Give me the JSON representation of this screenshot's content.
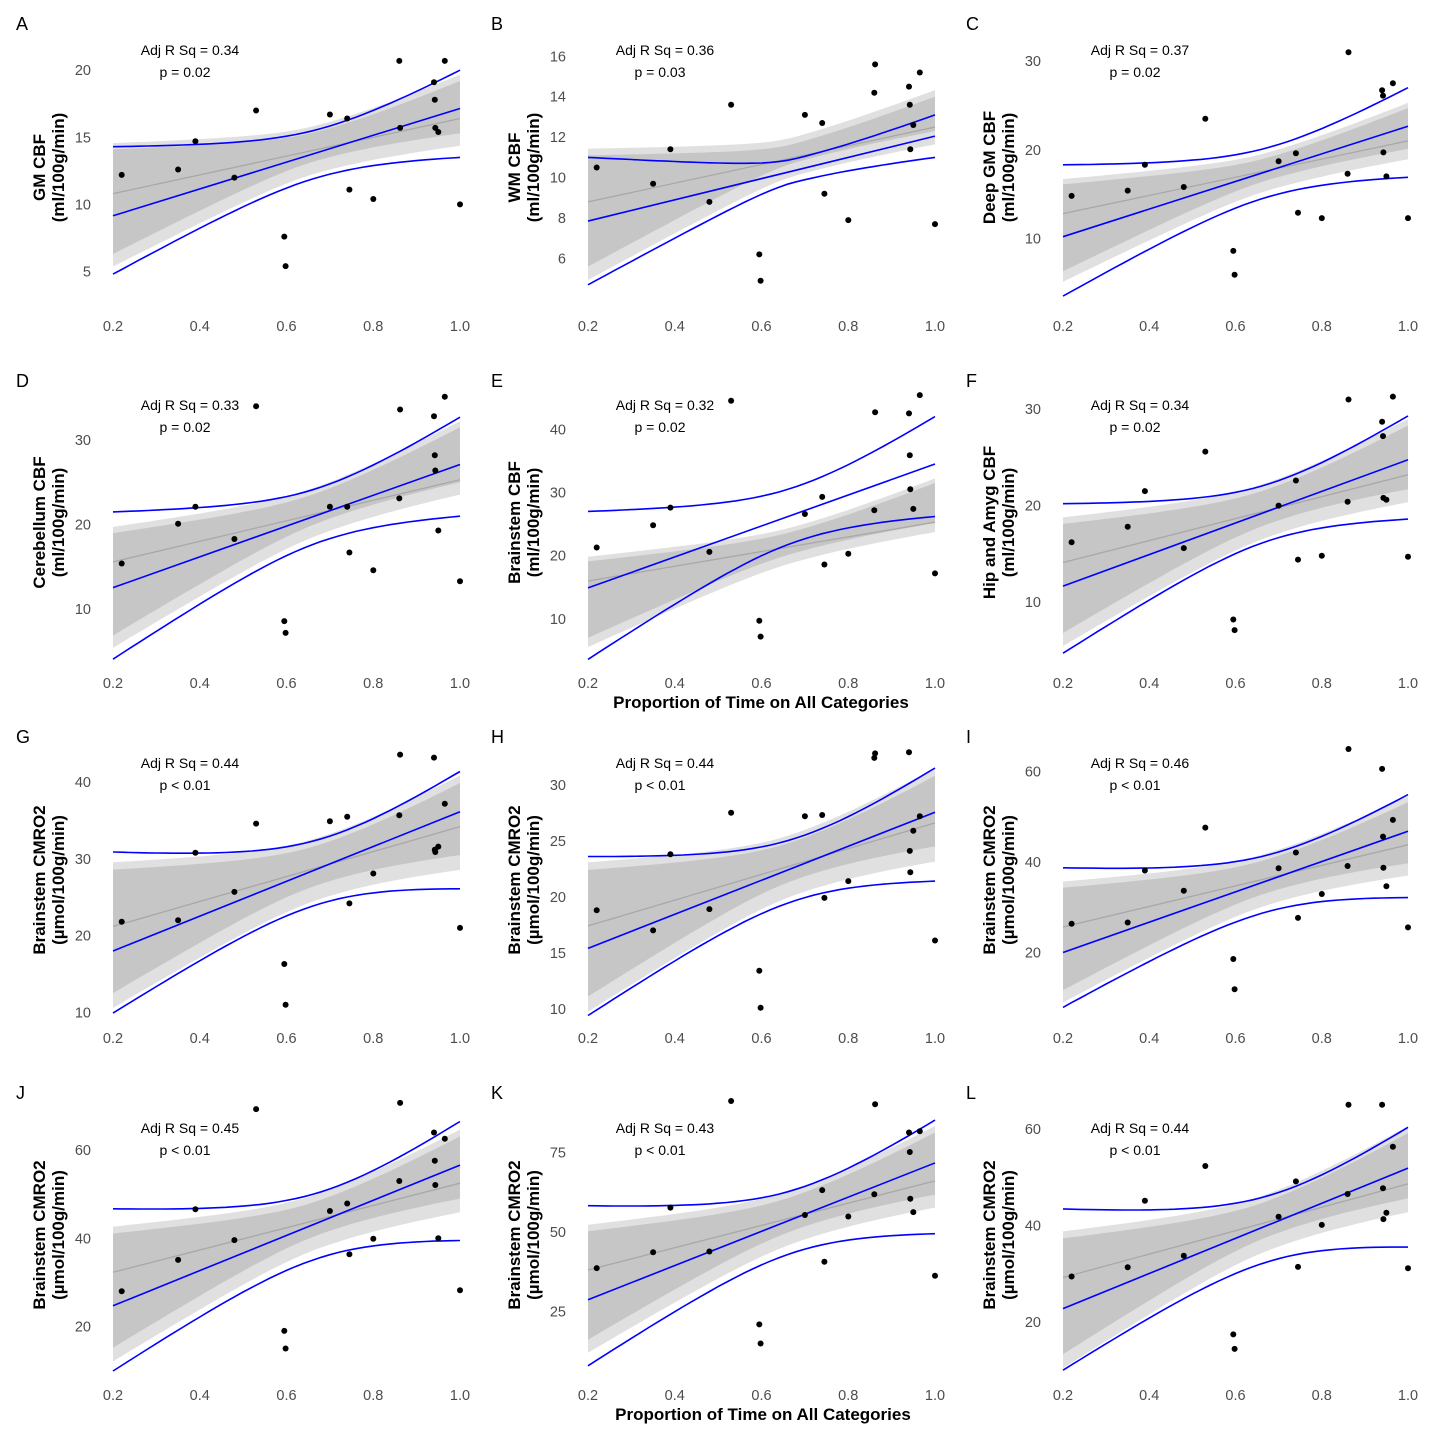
{
  "x_axis_title_1": "Proportion of Time on All Categories",
  "x_axis_title_2": "Proportion of Time on All Categories",
  "chart_data": [
    {
      "letter": "A",
      "type": "scatter",
      "ylabel": [
        "GM CBF",
        "(ml/100g/min)"
      ],
      "xlim": [
        0.2,
        1.0
      ],
      "ylim": [
        2.5,
        23
      ],
      "xticks": [
        "0.2",
        "0.4",
        "0.6",
        "0.8",
        "1.0"
      ],
      "yticks": [
        5,
        10,
        15,
        20
      ],
      "r2_label": "Adj R Sq =  0.34",
      "p_label": "p =  0.02",
      "x": [
        0.22,
        0.35,
        0.39,
        0.48,
        0.53,
        0.595,
        0.598,
        0.7,
        0.74,
        0.745,
        0.8,
        0.86,
        0.862,
        0.94,
        0.942,
        0.943,
        0.95,
        0.965,
        1.0
      ],
      "y": [
        12.2,
        12.6,
        14.7,
        12.0,
        17.0,
        7.6,
        5.4,
        16.7,
        16.4,
        11.1,
        10.4,
        20.7,
        15.7,
        19.1,
        17.8,
        15.7,
        15.4,
        20.7,
        10.0
      ],
      "fit": [
        10.8,
        16.4
      ],
      "ci": [
        [
          6.3,
          15.3
        ],
        [
          14.1,
          19.2
        ]
      ],
      "pred": [
        [
          4.8,
          13.5
        ],
        [
          14.3,
          20.0
        ]
      ]
    },
    {
      "letter": "B",
      "type": "scatter",
      "ylabel": [
        "WM CBF",
        "(ml/100g/min)"
      ],
      "xlim": [
        0.2,
        1.0
      ],
      "ylim": [
        3.7,
        17.3
      ],
      "xticks": [
        "0.2",
        "0.4",
        "0.6",
        "0.8",
        "1.0"
      ],
      "yticks": [
        6,
        8,
        10,
        12,
        14,
        16
      ],
      "r2_label": "Adj R Sq =  0.36",
      "p_label": "p =  0.03",
      "x": [
        0.22,
        0.35,
        0.39,
        0.48,
        0.53,
        0.595,
        0.598,
        0.7,
        0.74,
        0.745,
        0.8,
        0.86,
        0.862,
        0.94,
        0.942,
        0.943,
        0.95,
        0.965,
        1.0
      ],
      "y": [
        10.5,
        9.7,
        11.4,
        8.8,
        13.6,
        6.2,
        4.9,
        13.1,
        12.7,
        9.2,
        7.9,
        14.2,
        15.6,
        14.5,
        13.6,
        11.4,
        12.6,
        15.2,
        7.7
      ],
      "fit": [
        8.8,
        12.5
      ],
      "ci": [
        [
          5.6,
          12.3
        ],
        [
          11.1,
          14.0
        ]
      ],
      "pred": [
        [
          4.7,
          11.0
        ],
        [
          11.0,
          13.1
        ]
      ]
    },
    {
      "letter": "C",
      "type": "scatter",
      "ylabel": [
        "Deep GM CBF",
        "(ml/100g/min)"
      ],
      "xlim": [
        0.2,
        1.0
      ],
      "ylim": [
        2.5,
        33.5
      ],
      "xticks": [
        "0.2",
        "0.4",
        "0.6",
        "0.8",
        "1.0"
      ],
      "yticks": [
        10,
        20,
        30
      ],
      "r2_label": "Adj R Sq =  0.37",
      "p_label": "p =  0.02",
      "x": [
        0.22,
        0.35,
        0.39,
        0.48,
        0.53,
        0.595,
        0.598,
        0.7,
        0.74,
        0.745,
        0.8,
        0.86,
        0.862,
        0.94,
        0.942,
        0.943,
        0.95,
        0.965,
        1.0
      ],
      "y": [
        14.8,
        15.4,
        18.3,
        15.8,
        23.5,
        8.6,
        5.9,
        18.7,
        19.6,
        12.9,
        12.3,
        17.3,
        31.0,
        26.7,
        26.1,
        19.7,
        17.0,
        27.5,
        12.3
      ],
      "fit": [
        12.8,
        21.0
      ],
      "ci": [
        [
          6.3,
          20.1
        ],
        [
          16.1,
          24.7
        ]
      ],
      "pred": [
        [
          3.5,
          16.9
        ],
        [
          18.3,
          27.0
        ]
      ]
    },
    {
      "letter": "D",
      "type": "scatter",
      "ylabel": [
        "Cerebellum CBF",
        "(ml/100g/min)"
      ],
      "xlim": [
        0.2,
        1.0
      ],
      "ylim": [
        4.0,
        36.5
      ],
      "xticks": [
        "0.2",
        "0.4",
        "0.6",
        "0.8",
        "1.0"
      ],
      "yticks": [
        10,
        20,
        30
      ],
      "r2_label": "Adj R Sq =  0.33",
      "p_label": "p =  0.02",
      "x": [
        0.22,
        0.35,
        0.39,
        0.48,
        0.53,
        0.595,
        0.598,
        0.7,
        0.74,
        0.745,
        0.8,
        0.86,
        0.862,
        0.94,
        0.942,
        0.943,
        0.95,
        0.965,
        1.0
      ],
      "y": [
        15.4,
        20.1,
        22.1,
        18.3,
        34.0,
        8.6,
        7.2,
        22.1,
        22.1,
        16.7,
        14.6,
        23.1,
        33.6,
        32.8,
        28.2,
        26.4,
        19.3,
        35.1,
        13.3
      ],
      "fit": [
        15.6,
        25.3
      ],
      "ci": [
        [
          6.9,
          25.0
        ],
        [
          19.0,
          31.5
        ]
      ],
      "pred": [
        [
          4.1,
          21.0
        ],
        [
          21.5,
          32.7
        ]
      ]
    },
    {
      "letter": "E",
      "type": "scatter",
      "ylabel": [
        "Brainstem CBF",
        "(ml/100g/min)"
      ],
      "xlim": [
        0.2,
        1.0
      ],
      "ylim": [
        3.5,
        47.0
      ],
      "xticks": [
        "0.2",
        "0.4",
        "0.6",
        "0.8",
        "1.0"
      ],
      "yticks": [
        10,
        20,
        30,
        40
      ],
      "r2_label": "Adj R Sq =  0.32",
      "p_label": "p =  0.02",
      "x": [
        0.22,
        0.35,
        0.39,
        0.48,
        0.53,
        0.595,
        0.598,
        0.7,
        0.74,
        0.745,
        0.8,
        0.86,
        0.862,
        0.94,
        0.942,
        0.943,
        0.95,
        0.965,
        1.0
      ],
      "y": [
        21.3,
        24.8,
        27.6,
        20.6,
        44.5,
        9.7,
        7.2,
        26.6,
        29.3,
        18.6,
        20.3,
        27.2,
        42.7,
        42.5,
        35.9,
        30.5,
        27.4,
        45.4,
        17.2
      ],
      "fit": [
        16.0,
        25.3
      ],
      "ci": [
        [
          7.0,
          25.2
        ],
        [
          19.1,
          31.5
        ]
      ],
      "pred": [
        [
          3.6,
          26.2
        ],
        [
          27.0,
          42.0
        ]
      ]
    },
    {
      "letter": "F",
      "type": "scatter",
      "ylabel": [
        "Hip and Amyg CBF",
        "(ml/100g/min)"
      ],
      "xlim": [
        0.2,
        1.0
      ],
      "ylim": [
        4.0,
        32.5
      ],
      "xticks": [
        "0.2",
        "0.4",
        "0.6",
        "0.8",
        "1.0"
      ],
      "yticks": [
        10,
        20,
        30
      ],
      "r2_label": "Adj R Sq =  0.34",
      "p_label": "p =  0.02",
      "x": [
        0.22,
        0.35,
        0.39,
        0.48,
        0.53,
        0.595,
        0.598,
        0.7,
        0.74,
        0.745,
        0.8,
        0.86,
        0.862,
        0.94,
        0.942,
        0.943,
        0.95,
        0.965,
        1.0
      ],
      "y": [
        16.2,
        17.8,
        21.5,
        15.6,
        25.6,
        8.2,
        7.1,
        20.0,
        22.6,
        14.4,
        14.8,
        20.4,
        31.0,
        28.7,
        27.2,
        20.8,
        20.6,
        31.3,
        14.7
      ],
      "fit": [
        14.1,
        23.2
      ],
      "ci": [
        [
          6.8,
          21.7
        ],
        [
          18.1,
          28.3
        ]
      ],
      "pred": [
        [
          4.7,
          18.6
        ],
        [
          20.2,
          29.3
        ]
      ]
    },
    {
      "letter": "G",
      "type": "scatter",
      "ylabel": [
        "Brainstem CMRO2",
        "(µmol/100g/min)"
      ],
      "xlim": [
        0.2,
        1.0
      ],
      "ylim": [
        9.0,
        45.5
      ],
      "xticks": [
        "0.2",
        "0.4",
        "0.6",
        "0.8",
        "1.0"
      ],
      "yticks": [
        10,
        20,
        30,
        40
      ],
      "r2_label": "Adj R Sq =  0.44",
      "p_label": "p < 0.01",
      "x": [
        0.22,
        0.35,
        0.39,
        0.48,
        0.53,
        0.595,
        0.598,
        0.7,
        0.74,
        0.745,
        0.8,
        0.86,
        0.862,
        0.94,
        0.942,
        0.943,
        0.95,
        0.965,
        1.0
      ],
      "y": [
        21.8,
        22.0,
        30.8,
        25.7,
        34.6,
        16.3,
        11.0,
        34.9,
        35.5,
        24.2,
        28.1,
        35.7,
        43.6,
        43.2,
        31.2,
        30.9,
        31.6,
        37.2,
        21.0
      ],
      "fit": [
        21.2,
        34.2
      ],
      "ci": [
        [
          12.5,
          30.5
        ],
        [
          28.6,
          39.9
        ]
      ],
      "pred": [
        [
          9.9,
          26.1
        ],
        [
          30.9,
          41.4
        ]
      ]
    },
    {
      "letter": "H",
      "type": "scatter",
      "ylabel": [
        "Brainstem CMRO2",
        "(µmol/100g/min)"
      ],
      "xlim": [
        0.2,
        1.0
      ],
      "ylim": [
        9.0,
        34.0
      ],
      "xticks": [
        "0.2",
        "0.4",
        "0.6",
        "0.8",
        "1.0"
      ],
      "yticks": [
        10,
        15,
        20,
        25,
        30
      ],
      "r2_label": "Adj R Sq =  0.44",
      "p_label": "p < 0.01",
      "x": [
        0.22,
        0.35,
        0.39,
        0.48,
        0.53,
        0.595,
        0.598,
        0.7,
        0.74,
        0.745,
        0.8,
        0.86,
        0.862,
        0.94,
        0.942,
        0.943,
        0.95,
        0.965,
        1.0
      ],
      "y": [
        18.8,
        17.0,
        23.8,
        18.9,
        27.5,
        13.4,
        10.1,
        27.2,
        27.3,
        19.9,
        21.4,
        32.4,
        32.8,
        32.9,
        24.1,
        22.2,
        25.9,
        27.2,
        16.1
      ],
      "fit": [
        17.4,
        26.6
      ],
      "ci": [
        [
          11.1,
          24.5
        ],
        [
          22.4,
          30.8
        ]
      ],
      "pred": [
        [
          9.4,
          21.4
        ],
        [
          23.6,
          31.5
        ]
      ]
    },
    {
      "letter": "I",
      "type": "scatter",
      "ylabel": [
        "Brainstem CMRO2",
        "(µmol/100g/min)"
      ],
      "xlim": [
        0.2,
        1.0
      ],
      "ylim": [
        5.0,
        67.0
      ],
      "xticks": [
        "0.2",
        "0.4",
        "0.6",
        "0.8",
        "1.0"
      ],
      "yticks": [
        20,
        40,
        60
      ],
      "r2_label": "Adj R Sq =  0.46",
      "p_label": "p < 0.01",
      "x": [
        0.22,
        0.35,
        0.39,
        0.48,
        0.53,
        0.595,
        0.598,
        0.7,
        0.74,
        0.745,
        0.8,
        0.86,
        0.862,
        0.94,
        0.942,
        0.943,
        0.95,
        0.965,
        1.0
      ],
      "y": [
        26.3,
        26.6,
        38.1,
        33.6,
        47.6,
        18.5,
        11.8,
        38.6,
        42.1,
        27.6,
        32.9,
        39.1,
        65.0,
        60.6,
        45.6,
        38.7,
        34.6,
        49.3,
        25.5
      ],
      "fit": [
        25.6,
        43.8
      ],
      "ci": [
        [
          11.6,
          39.7
        ],
        [
          34.3,
          53.2
        ]
      ],
      "pred": [
        [
          7.8,
          32.1
        ],
        [
          38.7,
          54.9
        ]
      ]
    },
    {
      "letter": "J",
      "type": "scatter",
      "ylabel": [
        "Brainstem CMRO2",
        "(µmol/100g/min)"
      ],
      "xlim": [
        0.2,
        1.0
      ],
      "ylim": [
        9.0,
        72.5
      ],
      "xticks": [
        "0.2",
        "0.4",
        "0.6",
        "0.8",
        "1.0"
      ],
      "yticks": [
        20,
        40,
        60
      ],
      "r2_label": "Adj R Sq =  0.45",
      "p_label": "p < 0.01",
      "x": [
        0.22,
        0.35,
        0.39,
        0.48,
        0.53,
        0.595,
        0.598,
        0.7,
        0.74,
        0.745,
        0.8,
        0.86,
        0.862,
        0.94,
        0.942,
        0.943,
        0.95,
        0.965,
        1.0
      ],
      "y": [
        28.0,
        35.1,
        46.6,
        39.6,
        69.3,
        19.0,
        15.0,
        46.2,
        47.9,
        36.4,
        39.9,
        53.0,
        70.7,
        64.0,
        57.6,
        52.1,
        40.0,
        62.6,
        28.2
      ],
      "fit": [
        32.3,
        52.5
      ],
      "ci": [
        [
          15.2,
          49.0
        ],
        [
          41.1,
          63.1
        ]
      ],
      "pred": [
        [
          9.9,
          39.5
        ],
        [
          46.7,
          66.5
        ]
      ]
    },
    {
      "letter": "K",
      "type": "scatter",
      "ylabel": [
        "Brainstem CMRO2",
        "(µmol/100g/min)"
      ],
      "xlim": [
        0.2,
        1.0
      ],
      "ylim": [
        5.0,
        93.0
      ],
      "xticks": [
        "0.2",
        "0.4",
        "0.6",
        "0.8",
        "1.0"
      ],
      "yticks": [
        25,
        50,
        75
      ],
      "r2_label": "Adj R Sq =  0.43",
      "p_label": "p < 0.01",
      "x": [
        0.22,
        0.35,
        0.39,
        0.48,
        0.53,
        0.595,
        0.598,
        0.7,
        0.74,
        0.745,
        0.8,
        0.86,
        0.862,
        0.94,
        0.942,
        0.943,
        0.95,
        0.965,
        1.0
      ],
      "y": [
        38.6,
        43.6,
        57.6,
        43.8,
        91.1,
        20.9,
        14.9,
        55.3,
        63.1,
        40.6,
        54.8,
        61.8,
        90.1,
        81.2,
        75.1,
        60.4,
        56.2,
        81.6,
        36.2
      ],
      "fit": [
        38.0,
        66.0
      ],
      "ci": [
        [
          16.1,
          61.7
        ],
        [
          50.2,
          81.2
        ]
      ],
      "pred": [
        [
          7.9,
          49.4
        ],
        [
          58.2,
          85.1
        ]
      ]
    },
    {
      "letter": "L",
      "type": "scatter",
      "ylabel": [
        "Brainstem CMRO2",
        "(µmol/100g/min)"
      ],
      "xlim": [
        0.2,
        1.0
      ],
      "ylim": [
        9.0,
        67.0
      ],
      "xticks": [
        "0.2",
        "0.4",
        "0.6",
        "0.8",
        "1.0"
      ],
      "yticks": [
        20,
        40,
        60
      ],
      "r2_label": "Adj R Sq =  0.44",
      "p_label": "p < 0.01",
      "x": [
        0.22,
        0.35,
        0.39,
        0.48,
        0.53,
        0.595,
        0.598,
        0.7,
        0.74,
        0.745,
        0.8,
        0.86,
        0.862,
        0.94,
        0.942,
        0.943,
        0.95,
        0.965,
        1.0
      ],
      "y": [
        29.4,
        31.3,
        45.1,
        33.7,
        52.3,
        17.4,
        14.4,
        41.8,
        49.1,
        31.4,
        40.1,
        46.5,
        65.0,
        65.0,
        47.7,
        41.3,
        42.6,
        56.3,
        31.1
      ],
      "fit": [
        29.2,
        48.6
      ],
      "ci": [
        [
          13.3,
          45.6
        ],
        [
          37.3,
          59.1
        ]
      ],
      "pred": [
        [
          10.0,
          35.5
        ],
        [
          43.4,
          60.3
        ]
      ]
    }
  ]
}
